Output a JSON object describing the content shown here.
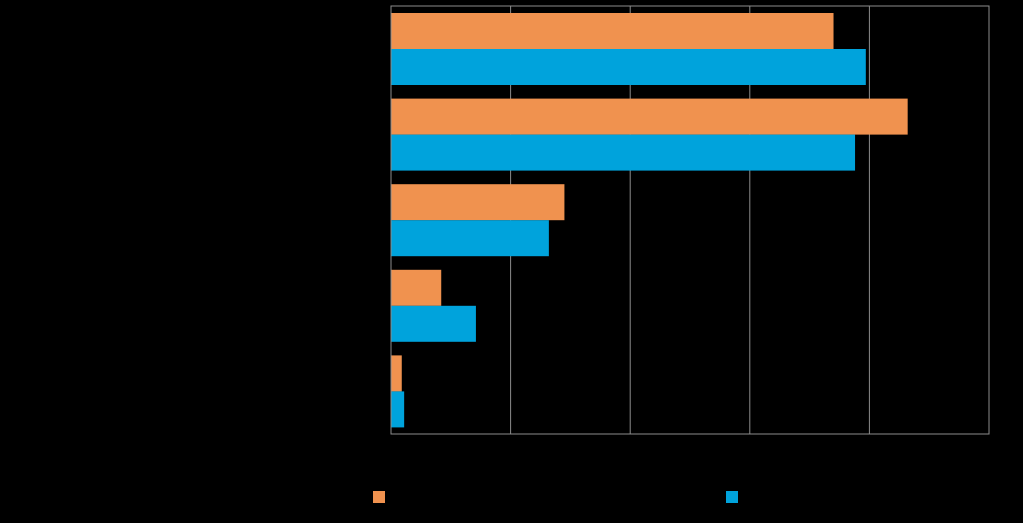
{
  "chart_data": {
    "type": "bar",
    "orientation": "horizontal",
    "categories": [
      "",
      "",
      "",
      "",
      ""
    ],
    "series": [
      {
        "color": "#F0924F",
        "values": [
          37.0,
          43.2,
          14.5,
          4.2,
          0.9
        ]
      },
      {
        "color": "#00A3DC",
        "values": [
          39.7,
          38.8,
          13.2,
          7.1,
          1.1
        ]
      }
    ],
    "xlim": [
      0,
      50
    ],
    "xticks": [
      0,
      10,
      20,
      30,
      40,
      50
    ],
    "grid": true,
    "legend": "bottom",
    "background": "#000000",
    "grid_color": "#8C8C8C"
  }
}
